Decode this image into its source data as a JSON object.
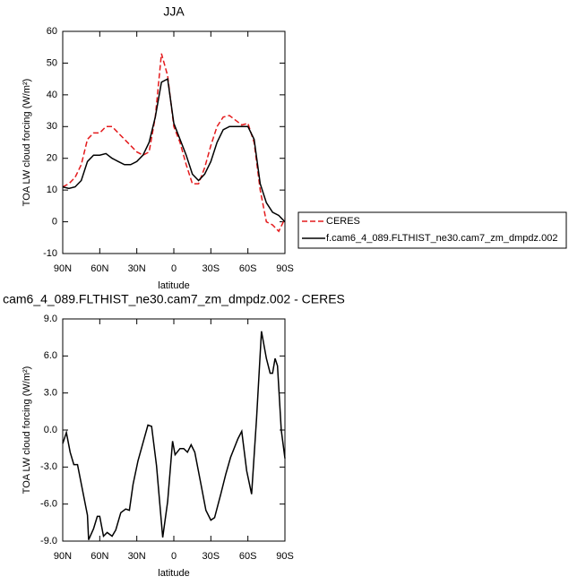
{
  "chart_data": [
    {
      "type": "line",
      "title": "JJA",
      "ylabel": "TOA LW cloud forcing (W/m²)",
      "xlabel": "latitude",
      "x": [
        90,
        85,
        80,
        75,
        70,
        65,
        60,
        55,
        50,
        45,
        40,
        35,
        30,
        25,
        20,
        15,
        10,
        5,
        0,
        -5,
        -10,
        -15,
        -20,
        -25,
        -30,
        -35,
        -40,
        -45,
        -50,
        -55,
        -60,
        -65,
        -70,
        -75,
        -80,
        -85,
        -90
      ],
      "series": [
        {
          "name": "CERES",
          "color": "#e41a1c",
          "line_style": "dashed",
          "values": [
            11,
            12,
            14,
            18,
            26,
            28,
            28,
            30,
            30,
            28,
            26,
            24,
            22,
            21,
            22,
            33,
            53,
            46,
            30,
            25,
            18,
            12,
            12,
            17,
            24,
            30,
            33,
            33.5,
            32,
            30.5,
            31,
            25,
            10,
            0,
            -1,
            -3,
            1
          ]
        },
        {
          "name": "f.cam6_4_089.FLTHIST_ne30.cam7_zm_dmpdz.002",
          "color": "#000000",
          "line_style": "solid",
          "values": [
            11,
            10.5,
            11,
            13,
            19,
            21,
            21,
            21.5,
            20,
            19,
            18,
            18,
            19,
            21,
            25,
            33,
            44,
            45,
            31,
            26,
            21,
            15,
            13,
            15,
            19,
            25,
            29,
            30,
            30,
            30,
            30,
            26,
            12,
            6,
            3,
            2,
            0
          ]
        }
      ],
      "xlim": [
        90,
        -90
      ],
      "xticks": [
        {
          "value": 90,
          "label": "90N"
        },
        {
          "value": 60,
          "label": "60N"
        },
        {
          "value": 30,
          "label": "30N"
        },
        0,
        {
          "value": -30,
          "label": "30S"
        },
        {
          "value": -60,
          "label": "60S"
        },
        {
          "value": -90,
          "label": "90S"
        }
      ],
      "ylim": [
        -10,
        60
      ],
      "yticks": [
        -10,
        0,
        10,
        20,
        30,
        40,
        50,
        60
      ],
      "legend": "right"
    },
    {
      "type": "line",
      "title": "cam6_4_089.FLTHIST_ne30.cam7_zm_dmpdz.002 - CERES",
      "ylabel": "TOA LW cloud forcing (W/m²)",
      "xlabel": "latitude",
      "x": [
        90,
        87,
        84,
        81,
        78,
        70,
        69,
        65,
        62,
        60,
        57,
        54,
        50,
        47,
        43,
        39,
        36,
        33,
        29,
        24,
        21,
        18,
        14,
        9,
        5,
        1,
        -1,
        -5,
        -8,
        -11,
        -14,
        -17,
        -22,
        -26,
        -30,
        -33,
        -38,
        -42,
        -46,
        -52,
        -55,
        -59,
        -63,
        -67,
        -71,
        -75,
        -78,
        -80,
        -82,
        -84,
        -87,
        -90
      ],
      "series": [
        {
          "color": "#000000",
          "line_style": "solid",
          "values": [
            -1.1,
            -0.2,
            -1.8,
            -2.8,
            -2.8,
            -6.9,
            -8.9,
            -8.0,
            -7.0,
            -7.0,
            -8.6,
            -8.3,
            -8.6,
            -8.1,
            -6.7,
            -6.4,
            -6.5,
            -4.4,
            -2.5,
            -0.7,
            0.4,
            0.3,
            -2.9,
            -8.7,
            -5.8,
            -0.9,
            -2.0,
            -1.5,
            -1.5,
            -1.8,
            -1.2,
            -1.8,
            -4.4,
            -6.5,
            -7.3,
            -7.1,
            -5.2,
            -3.6,
            -2.2,
            -0.7,
            -0.1,
            -3.3,
            -5.2,
            0.9,
            8.0,
            5.8,
            4.6,
            4.6,
            5.8,
            5.2,
            0,
            -2.3
          ]
        }
      ],
      "xlim": [
        90,
        -90
      ],
      "xticks": [
        {
          "value": 90,
          "label": "90N"
        },
        {
          "value": 60,
          "label": "60N"
        },
        {
          "value": 30,
          "label": "30N"
        },
        0,
        {
          "value": -30,
          "label": "30S"
        },
        {
          "value": -60,
          "label": "60S"
        },
        {
          "value": -90,
          "label": "90S"
        }
      ],
      "ylim": [
        -9,
        9
      ],
      "yticks": [
        {
          "value": -9,
          "label": "-9.0"
        },
        {
          "value": -6,
          "label": "-6.0"
        },
        {
          "value": -3,
          "label": "-3.0"
        },
        {
          "value": 0,
          "label": "0.0"
        },
        {
          "value": 3,
          "label": "3.0"
        },
        {
          "value": 6,
          "label": "6.0"
        },
        {
          "value": 9,
          "label": "9.0"
        }
      ]
    }
  ]
}
